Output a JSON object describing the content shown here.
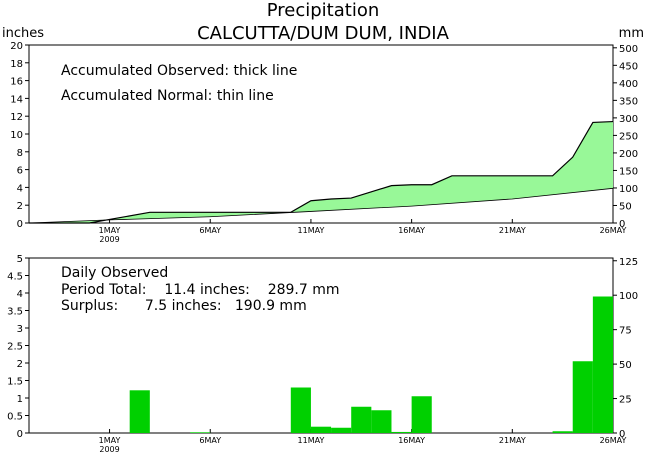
{
  "figure": {
    "title": "Precipitation",
    "subtitle": "CALCUTTA/DUM DUM, INDIA",
    "left_unit": "inches",
    "right_unit": "mm"
  },
  "colors": {
    "surplus_fill": "#98f898",
    "daily_bar": "#00d000",
    "line": "#000000"
  },
  "chart_data": [
    {
      "type": "area",
      "name": "accumulated",
      "annotations": [
        "Accumulated Observed: thick line",
        "Accumulated Normal: thin line"
      ],
      "xlim": [
        27,
        56
      ],
      "x_tick_values": [
        31,
        36,
        41,
        46,
        51,
        56
      ],
      "x_tick_labels": [
        "1MAY",
        "6MAY",
        "11MAY",
        "16MAY",
        "21MAY",
        "26MAY"
      ],
      "x_year_label": "2009",
      "ylim": [
        0,
        20
      ],
      "y_ticks": [
        0,
        2,
        4,
        6,
        8,
        10,
        12,
        14,
        16,
        18,
        20
      ],
      "y2lim": [
        0,
        508
      ],
      "y2_ticks": [
        0,
        50,
        100,
        150,
        200,
        250,
        300,
        350,
        400,
        450,
        500
      ],
      "observed": {
        "x": [
          27,
          29,
          30,
          33,
          34,
          35,
          36,
          37,
          40,
          41,
          42,
          43,
          44,
          45,
          46,
          47,
          48,
          49,
          50,
          51,
          52,
          53,
          54,
          55,
          56
        ],
        "y": [
          0,
          0,
          0,
          1.2,
          1.2,
          1.2,
          1.2,
          1.2,
          1.2,
          2.5,
          2.7,
          2.8,
          3.5,
          4.2,
          4.3,
          4.3,
          5.3,
          5.3,
          5.3,
          5.3,
          5.3,
          5.3,
          7.4,
          11.3,
          11.4
        ]
      },
      "normal": {
        "x": [
          27,
          31,
          36,
          41,
          46,
          51,
          56
        ],
        "y": [
          0,
          0.35,
          0.7,
          1.3,
          1.9,
          2.7,
          3.9
        ]
      }
    },
    {
      "type": "bar",
      "name": "daily",
      "annotations": [
        "Daily Observed",
        "Period Total:    11.4 inches:    289.7 mm",
        "Surplus:      7.5 inches:   190.9 mm"
      ],
      "xlim": [
        27,
        56
      ],
      "x_tick_values": [
        31,
        36,
        41,
        46,
        51,
        56
      ],
      "x_tick_labels": [
        "1MAY",
        "6MAY",
        "11MAY",
        "16MAY",
        "21MAY",
        "26MAY"
      ],
      "x_year_label": "2009",
      "ylim": [
        0,
        5
      ],
      "y_ticks": [
        0,
        0.5,
        1,
        1.5,
        2,
        2.5,
        3,
        3.5,
        4,
        4.5,
        5
      ],
      "y_tick_labels": [
        "0",
        "0.5",
        "1",
        "1.5",
        "2",
        "2.5",
        "3",
        "3.5",
        "4",
        "4.5",
        "5"
      ],
      "y2lim": [
        0,
        127
      ],
      "y2_ticks": [
        0,
        25,
        50,
        75,
        100,
        125
      ],
      "x": [
        33,
        36,
        41,
        42,
        43,
        44,
        45,
        46,
        47,
        54,
        55,
        56
      ],
      "values": [
        1.22,
        0.02,
        1.3,
        0.18,
        0.15,
        0.75,
        0.65,
        0.03,
        1.05,
        0.05,
        2.05,
        3.9
      ]
    }
  ]
}
